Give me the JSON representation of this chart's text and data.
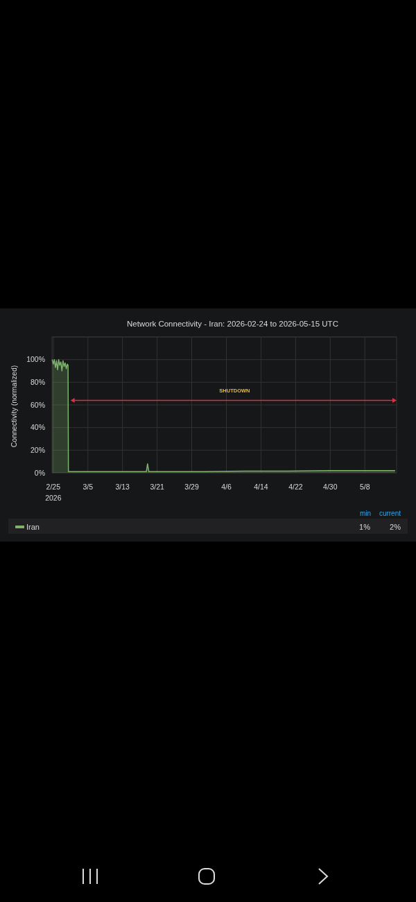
{
  "chart_data": {
    "type": "area",
    "title": "Network Connectivity - Iran: 2026-02-24 to 2026-05-15 UTC",
    "ylabel": "Connectivity (normalized)",
    "x": [
      "2026-02-24T18:00",
      "2026-02-25T00:00",
      "2026-02-25T06:00",
      "2026-02-25T12:00",
      "2026-02-25T18:00",
      "2026-02-26T00:00",
      "2026-02-26T06:00",
      "2026-02-26T12:00",
      "2026-02-26T18:00",
      "2026-02-27T00:00",
      "2026-02-27T06:00",
      "2026-02-27T12:00",
      "2026-02-27T18:00",
      "2026-02-28T00:00",
      "2026-02-28T06:00",
      "2026-02-28T10:00",
      "2026-02-28T12:00",
      "2026-03-05T00:00",
      "2026-03-10T00:00",
      "2026-03-15T00:00",
      "2026-03-18T12:00",
      "2026-03-18T19:00",
      "2026-03-19T02:00",
      "2026-03-25T00:00",
      "2026-04-01T00:00",
      "2026-04-10T00:00",
      "2026-04-20T00:00",
      "2026-04-30T00:00",
      "2026-05-08T00:00",
      "2026-05-15T00:00"
    ],
    "series": [
      {
        "name": "Iran",
        "color": "#7eb26d",
        "values": [
          100,
          96,
          100,
          93,
          99,
          91,
          100,
          95,
          98,
          90,
          99,
          94,
          97,
          92,
          96,
          95,
          1,
          1,
          1,
          1,
          1,
          8,
          1,
          1,
          1,
          1.5,
          1.5,
          2,
          2,
          2
        ]
      }
    ],
    "xlim": [
      "2026-02-24T17:00",
      "2026-05-15T08:00"
    ],
    "xticks": [
      {
        "value": "2026-02-25",
        "label": "2/25\n2026"
      },
      {
        "value": "2026-03-05",
        "label": "3/5"
      },
      {
        "value": "2026-03-13",
        "label": "3/13"
      },
      {
        "value": "2026-03-21",
        "label": "3/21"
      },
      {
        "value": "2026-03-29",
        "label": "3/29"
      },
      {
        "value": "2026-04-06",
        "label": "4/6"
      },
      {
        "value": "2026-04-14",
        "label": "4/14"
      },
      {
        "value": "2026-04-22",
        "label": "4/22"
      },
      {
        "value": "2026-04-30",
        "label": "4/30"
      },
      {
        "value": "2026-05-08",
        "label": "5/8"
      }
    ],
    "ylim": [
      0,
      120
    ],
    "yticks": [
      {
        "value": 0,
        "label": "0%"
      },
      {
        "value": 20,
        "label": "20%"
      },
      {
        "value": 40,
        "label": "40%"
      },
      {
        "value": 60,
        "label": "60%"
      },
      {
        "value": 80,
        "label": "80%"
      },
      {
        "value": 100,
        "label": "100%"
      },
      {
        "value": 120,
        "label": null
      }
    ],
    "grid": true,
    "legend": "bottom",
    "annotations": [
      "SHUTDOWN",
      "min",
      "current",
      "1%",
      "2%"
    ]
  }
}
